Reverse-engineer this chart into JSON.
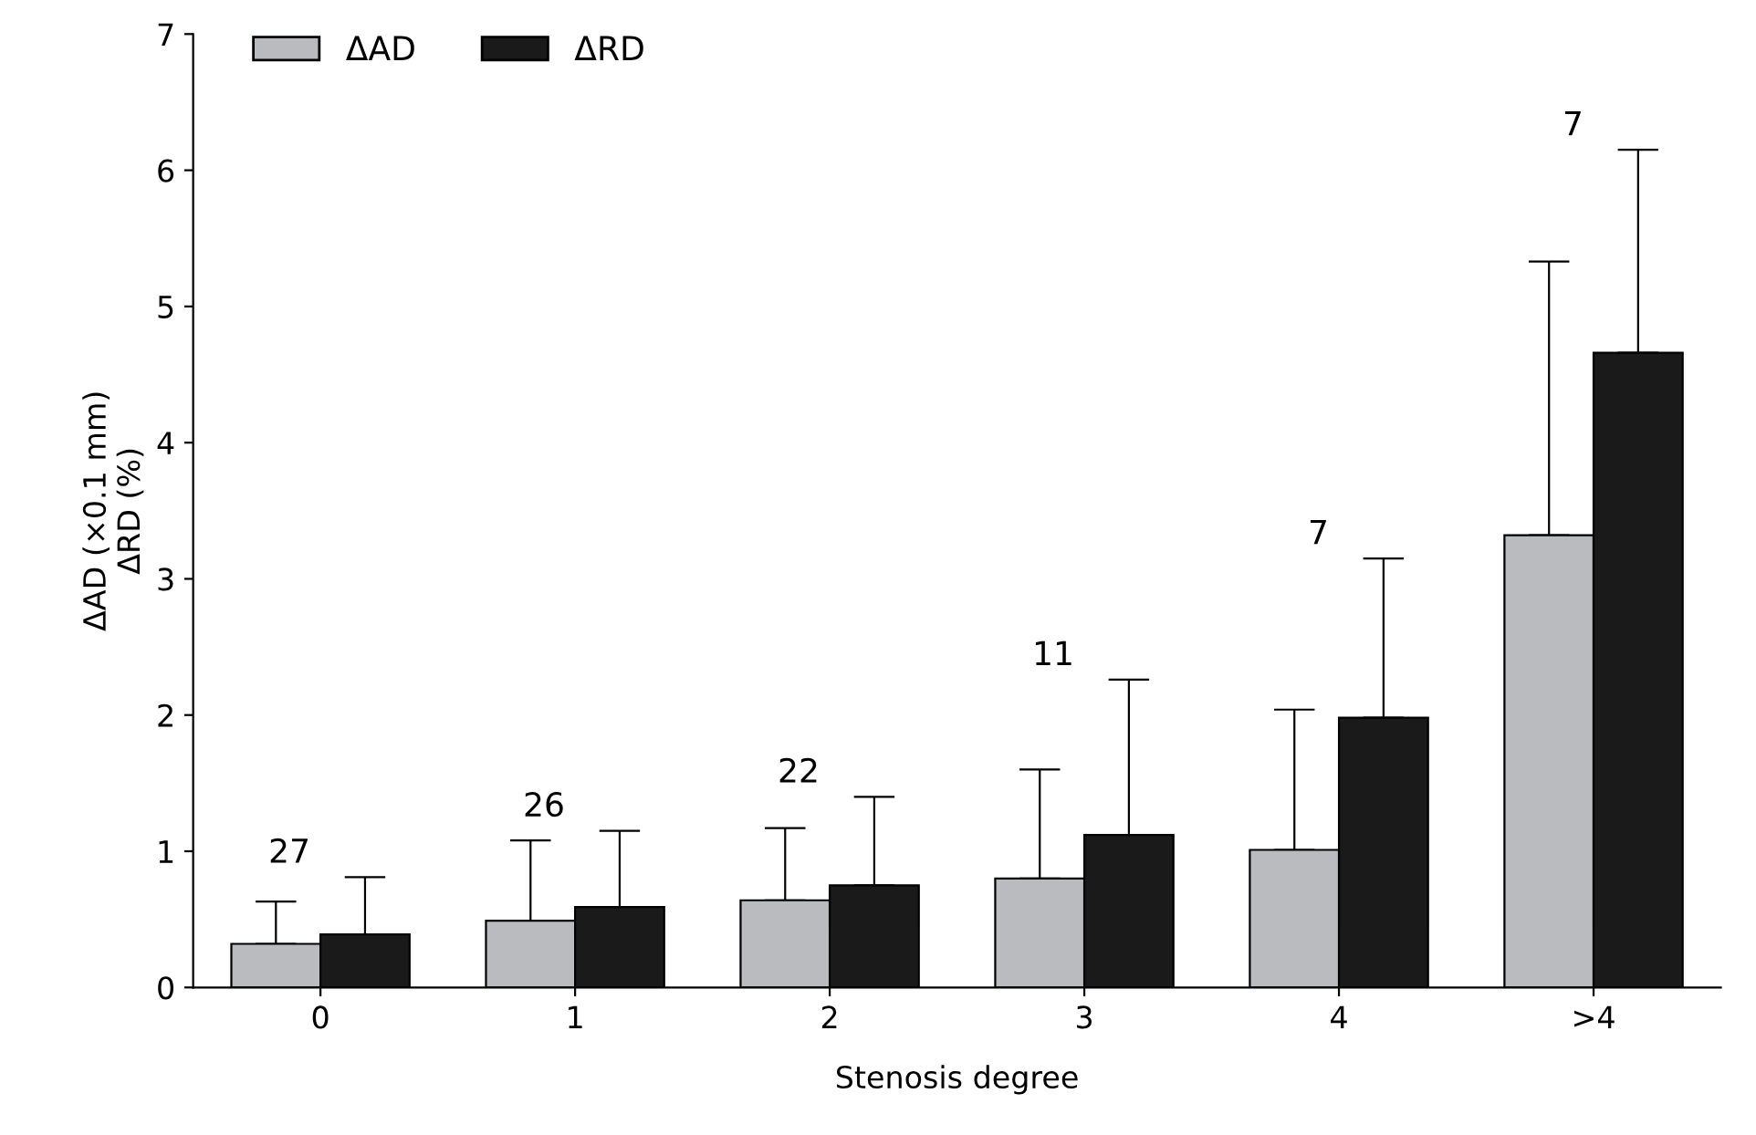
{
  "chart_data": {
    "type": "bar",
    "xlabel": "Stenosis degree",
    "ylabel": "ΔAD (×0.1 mm)\nΔRD (%)",
    "categories": [
      "0",
      "1",
      "2",
      "3",
      "4",
      ">4"
    ],
    "series": [
      {
        "name": "ΔAD",
        "color": "#b9bbbe",
        "values": [
          0.32,
          0.49,
          0.64,
          0.8,
          1.01,
          3.32
        ],
        "errors": [
          [
            0.32,
            0.63
          ],
          [
            0.49,
            1.08
          ],
          [
            0.64,
            1.17
          ],
          [
            0.8,
            1.6
          ],
          [
            1.01,
            2.04
          ],
          [
            3.32,
            5.33
          ]
        ]
      },
      {
        "name": "ΔRD",
        "color": "#1a1a1a",
        "values": [
          0.39,
          0.59,
          0.75,
          1.12,
          1.98,
          4.66
        ],
        "errors": [
          [
            0.39,
            0.81
          ],
          [
            0.59,
            1.15
          ],
          [
            0.75,
            1.4
          ],
          [
            1.12,
            2.26
          ],
          [
            1.98,
            3.15
          ],
          [
            4.66,
            6.15
          ]
        ]
      }
    ],
    "annotations": [
      "27",
      "26",
      "22",
      "11",
      "7",
      "7"
    ],
    "ylim": [
      0,
      7
    ],
    "yticks": [
      0,
      1,
      2,
      3,
      4,
      5,
      6,
      7
    ],
    "grid": false,
    "legend": "top left"
  }
}
